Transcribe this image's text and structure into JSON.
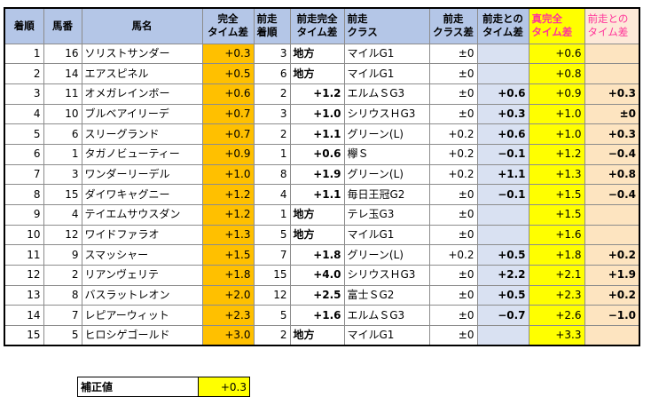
{
  "headers": [
    "着順",
    "馬番",
    "馬名",
    "完全\nタイム差",
    "前走\n着順",
    "前走完全\nタイム差",
    "前走\nクラス",
    "前走\nクラス差",
    "前走との\nタイム差",
    "真完全\nタイム差",
    "前走との\nタイム差"
  ],
  "rows": [
    [
      "1",
      "16",
      "ソリストサンダー",
      "+0.3",
      "3",
      "地方",
      "マイルG1",
      "±0",
      "",
      "+0.6",
      ""
    ],
    [
      "2",
      "14",
      "エアスピネル",
      "+0.5",
      "6",
      "地方",
      "マイルG1",
      "±0",
      "",
      "+0.8",
      ""
    ],
    [
      "3",
      "11",
      "オメガレインボー",
      "+0.6",
      "2",
      "+1.2",
      "エルムＳG3",
      "±0",
      "+0.6",
      "+0.9",
      "+0.3"
    ],
    [
      "4",
      "10",
      "ブルベアイリーデ",
      "+0.7",
      "3",
      "+1.0",
      "シリウスＨG3",
      "±0",
      "+0.3",
      "+1.0",
      "±0"
    ],
    [
      "5",
      "6",
      "スリーグランド",
      "+0.7",
      "2",
      "+1.1",
      "グリーン(L)",
      "+0.2",
      "+0.6",
      "+1.0",
      "+0.3"
    ],
    [
      "6",
      "1",
      "タガノビューティー",
      "+0.9",
      "1",
      "+0.6",
      "欅Ｓ",
      "+0.2",
      "−0.1",
      "+1.2",
      "−0.4"
    ],
    [
      "7",
      "3",
      "ワンダーリーデル",
      "+1.0",
      "8",
      "+1.9",
      "グリーン(L)",
      "+0.2",
      "+1.1",
      "+1.3",
      "+0.8"
    ],
    [
      "8",
      "15",
      "ダイワキャグニー",
      "+1.2",
      "4",
      "+1.1",
      "毎日王冠G2",
      "±0",
      "−0.1",
      "+1.5",
      "−0.4"
    ],
    [
      "9",
      "4",
      "テイエムサウスダン",
      "+1.2",
      "1",
      "地方",
      "テレ玉G3",
      "±0",
      "",
      "+1.5",
      ""
    ],
    [
      "10",
      "12",
      "ワイドファラオ",
      "+1.3",
      "5",
      "地方",
      "マイルG1",
      "±0",
      "",
      "+1.6",
      ""
    ],
    [
      "11",
      "9",
      "スマッシャー",
      "+1.5",
      "7",
      "+1.8",
      "グリーン(L)",
      "+0.2",
      "+0.5",
      "+1.8",
      "+0.2"
    ],
    [
      "12",
      "2",
      "リアンヴェリテ",
      "+1.8",
      "15",
      "+4.0",
      "シリウスＨG3",
      "±0",
      "+2.2",
      "+2.1",
      "+1.9"
    ],
    [
      "13",
      "8",
      "バスラットレオン",
      "+2.0",
      "12",
      "+2.5",
      "富士ＳG2",
      "±0",
      "+0.5",
      "+2.3",
      "+0.2"
    ],
    [
      "14",
      "7",
      "レピアーウィット",
      "+2.3",
      "5",
      "+1.6",
      "エルムＳG3",
      "±0",
      "−0.7",
      "+2.6",
      "−1.0"
    ],
    [
      "15",
      "5",
      "ヒロシゲゴールド",
      "+3.0",
      "2",
      "地方",
      "マイルG1",
      "±0",
      "",
      "+3.3",
      ""
    ]
  ],
  "correction": {
    "label": "補正値",
    "value": "+0.3"
  }
}
